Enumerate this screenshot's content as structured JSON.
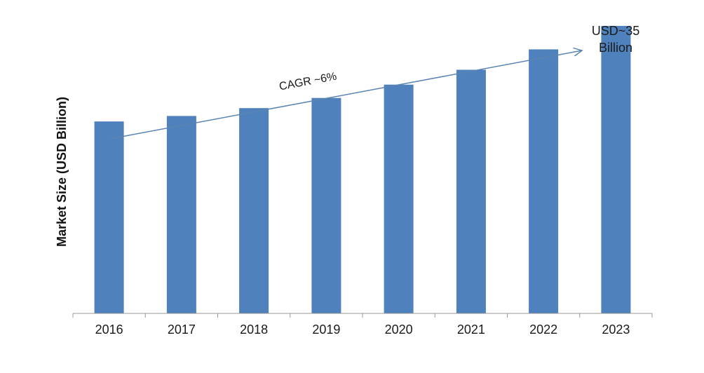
{
  "chart_data": {
    "type": "bar",
    "title": "",
    "xlabel": "",
    "ylabel": "Market Size (USD Billion)",
    "categories": [
      "2016",
      "2017",
      "2018",
      "2019",
      "2020",
      "2021",
      "2022",
      "2023"
    ],
    "values": [
      24.5,
      25.2,
      26.2,
      27.5,
      29.2,
      31.1,
      33.7,
      36.7
    ],
    "ylim": [
      0,
      40
    ],
    "grid": false,
    "legend": "none",
    "bar_color": "#4F81BD",
    "annotations": {
      "cagr_text": "CAGR ~6%",
      "end_value_line1": "USD~35",
      "end_value_line2": "Billion"
    }
  },
  "colors": {
    "arrow": "#5B84B1",
    "axis": "#9a9a9a"
  }
}
